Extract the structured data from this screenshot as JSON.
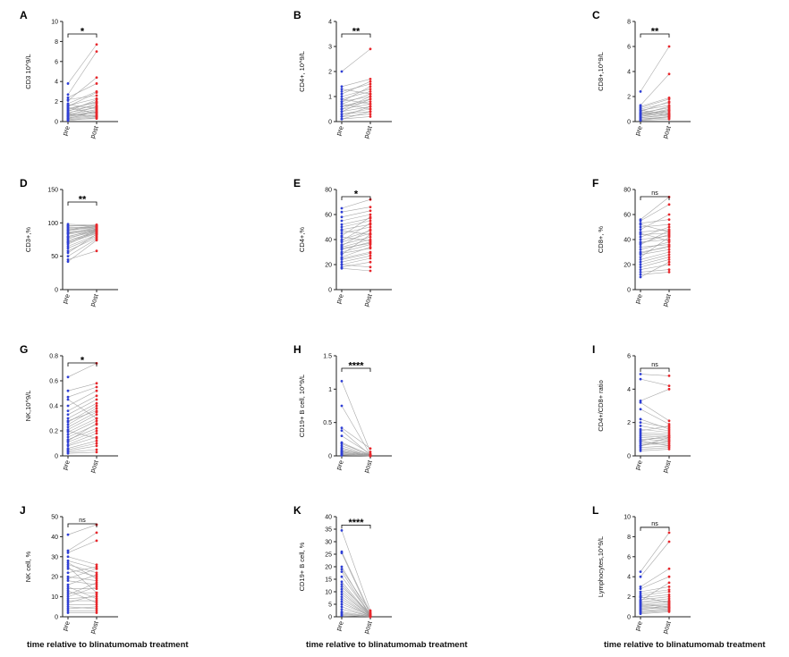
{
  "figure": {
    "x_caption": "time relative to blinatumomab treatment",
    "colors": {
      "pre": "#2f3fd6",
      "post": "#e8262b",
      "line": "#9a9a9a",
      "axis": "#222222"
    }
  },
  "chart_data": [
    {
      "type": "scatter",
      "panel": "A",
      "ylabel": "CD3 10^9/L",
      "ylim": [
        0,
        10
      ],
      "yticks": [
        0,
        2,
        4,
        6,
        8,
        10
      ],
      "categories": [
        "pre",
        "post"
      ],
      "significance": "*",
      "pairs": [
        [
          3.8,
          7.7
        ],
        [
          2.7,
          7.0
        ],
        [
          2.1,
          4.4
        ],
        [
          2.4,
          3.8
        ],
        [
          1.8,
          3.0
        ],
        [
          2.2,
          2.6
        ],
        [
          1.6,
          2.3
        ],
        [
          1.5,
          2.9
        ],
        [
          1.3,
          1.9
        ],
        [
          1.2,
          2.0
        ],
        [
          1.1,
          1.6
        ],
        [
          1.0,
          2.2
        ],
        [
          0.9,
          1.4
        ],
        [
          0.8,
          1.8
        ],
        [
          0.7,
          1.2
        ],
        [
          0.6,
          1.5
        ],
        [
          0.5,
          0.9
        ],
        [
          0.5,
          1.1
        ],
        [
          0.4,
          0.7
        ],
        [
          0.3,
          0.6
        ],
        [
          0.3,
          1.0
        ],
        [
          0.2,
          0.5
        ],
        [
          0.2,
          0.3
        ],
        [
          0.1,
          0.4
        ],
        [
          1.4,
          0.8
        ],
        [
          1.7,
          1.3
        ],
        [
          0.8,
          0.5
        ],
        [
          0.6,
          0.9
        ]
      ]
    },
    {
      "type": "scatter",
      "panel": "B",
      "ylabel": "CD4+, 10^9/L",
      "ylim": [
        0,
        4
      ],
      "yticks": [
        0,
        1,
        2,
        3,
        4
      ],
      "categories": [
        "pre",
        "post"
      ],
      "significance": "**",
      "pairs": [
        [
          2.0,
          2.9
        ],
        [
          1.4,
          1.7
        ],
        [
          1.2,
          1.5
        ],
        [
          1.1,
          1.6
        ],
        [
          1.0,
          1.3
        ],
        [
          0.9,
          1.2
        ],
        [
          0.8,
          1.4
        ],
        [
          0.8,
          1.0
        ],
        [
          0.7,
          1.1
        ],
        [
          0.6,
          0.9
        ],
        [
          0.6,
          0.8
        ],
        [
          0.5,
          1.0
        ],
        [
          0.5,
          0.7
        ],
        [
          0.4,
          0.6
        ],
        [
          0.4,
          0.9
        ],
        [
          0.3,
          0.5
        ],
        [
          0.3,
          0.4
        ],
        [
          0.2,
          0.3
        ],
        [
          0.2,
          0.6
        ],
        [
          0.1,
          0.2
        ],
        [
          0.1,
          0.4
        ],
        [
          0.9,
          0.7
        ],
        [
          1.3,
          1.1
        ],
        [
          0.7,
          0.5
        ]
      ]
    },
    {
      "type": "scatter",
      "panel": "C",
      "ylabel": "CD8+,10^9/L",
      "ylim": [
        0,
        8
      ],
      "yticks": [
        0,
        2,
        4,
        6,
        8
      ],
      "categories": [
        "pre",
        "post"
      ],
      "significance": "**",
      "pairs": [
        [
          2.4,
          6.0
        ],
        [
          1.3,
          3.8
        ],
        [
          1.1,
          1.8
        ],
        [
          1.0,
          1.5
        ],
        [
          0.9,
          1.3
        ],
        [
          0.8,
          1.6
        ],
        [
          0.7,
          1.1
        ],
        [
          0.6,
          1.2
        ],
        [
          0.6,
          0.9
        ],
        [
          0.5,
          1.0
        ],
        [
          0.5,
          0.8
        ],
        [
          0.4,
          0.7
        ],
        [
          0.4,
          0.9
        ],
        [
          0.3,
          0.6
        ],
        [
          0.3,
          0.5
        ],
        [
          0.2,
          0.4
        ],
        [
          0.2,
          0.3
        ],
        [
          0.1,
          0.2
        ],
        [
          0.1,
          0.4
        ],
        [
          1.2,
          1.9
        ],
        [
          0.9,
          0.6
        ],
        [
          0.7,
          0.5
        ]
      ]
    },
    {
      "type": "scatter",
      "panel": "D",
      "ylabel": "CD3+,%",
      "ylim": [
        0,
        150
      ],
      "yticks": [
        0,
        50,
        100,
        150
      ],
      "categories": [
        "pre",
        "post"
      ],
      "significance": "**",
      "pairs": [
        [
          98,
          96
        ],
        [
          96,
          95
        ],
        [
          95,
          97
        ],
        [
          93,
          94
        ],
        [
          92,
          93
        ],
        [
          90,
          92
        ],
        [
          88,
          95
        ],
        [
          86,
          91
        ],
        [
          85,
          90
        ],
        [
          83,
          89
        ],
        [
          80,
          88
        ],
        [
          78,
          87
        ],
        [
          76,
          90
        ],
        [
          74,
          86
        ],
        [
          72,
          85
        ],
        [
          70,
          84
        ],
        [
          68,
          88
        ],
        [
          65,
          82
        ],
        [
          62,
          80
        ],
        [
          58,
          78
        ],
        [
          55,
          83
        ],
        [
          50,
          76
        ],
        [
          45,
          58
        ],
        [
          42,
          74
        ],
        [
          89,
          97
        ],
        [
          84,
          93
        ],
        [
          79,
          91
        ],
        [
          71,
          89
        ]
      ]
    },
    {
      "type": "scatter",
      "panel": "E",
      "ylabel": "CD4+,%",
      "ylim": [
        0,
        80
      ],
      "yticks": [
        0,
        20,
        40,
        60,
        80
      ],
      "categories": [
        "pre",
        "post"
      ],
      "significance": "*",
      "pairs": [
        [
          65,
          72
        ],
        [
          62,
          66
        ],
        [
          58,
          63
        ],
        [
          55,
          60
        ],
        [
          52,
          57
        ],
        [
          50,
          55
        ],
        [
          48,
          52
        ],
        [
          45,
          50
        ],
        [
          43,
          58
        ],
        [
          40,
          47
        ],
        [
          38,
          45
        ],
        [
          36,
          42
        ],
        [
          34,
          40
        ],
        [
          32,
          38
        ],
        [
          30,
          36
        ],
        [
          28,
          44
        ],
        [
          26,
          34
        ],
        [
          25,
          30
        ],
        [
          24,
          29
        ],
        [
          22,
          27
        ],
        [
          20,
          25
        ],
        [
          18,
          22
        ],
        [
          17,
          15
        ],
        [
          20,
          18
        ],
        [
          47,
          44
        ],
        [
          42,
          39
        ],
        [
          35,
          48
        ],
        [
          29,
          33
        ],
        [
          33,
          37
        ],
        [
          39,
          53
        ]
      ]
    },
    {
      "type": "scatter",
      "panel": "F",
      "ylabel": "CD8+, %",
      "ylim": [
        0,
        80
      ],
      "yticks": [
        0,
        20,
        40,
        60,
        80
      ],
      "categories": [
        "pre",
        "post"
      ],
      "significance": "ns",
      "pairs": [
        [
          56,
          74
        ],
        [
          55,
          68
        ],
        [
          53,
          56
        ],
        [
          50,
          52
        ],
        [
          48,
          60
        ],
        [
          46,
          48
        ],
        [
          44,
          45
        ],
        [
          42,
          50
        ],
        [
          40,
          43
        ],
        [
          38,
          40
        ],
        [
          36,
          47
        ],
        [
          34,
          36
        ],
        [
          32,
          38
        ],
        [
          30,
          34
        ],
        [
          28,
          32
        ],
        [
          26,
          42
        ],
        [
          24,
          30
        ],
        [
          22,
          28
        ],
        [
          20,
          26
        ],
        [
          18,
          24
        ],
        [
          16,
          20
        ],
        [
          14,
          16
        ],
        [
          12,
          14
        ],
        [
          10,
          22
        ],
        [
          52,
          46
        ],
        [
          45,
          39
        ],
        [
          37,
          44
        ],
        [
          29,
          35
        ]
      ]
    },
    {
      "type": "scatter",
      "panel": "G",
      "ylabel": "NK,10^9/L",
      "ylim": [
        0,
        0.8
      ],
      "yticks": [
        0.0,
        0.2,
        0.4,
        0.6,
        0.8
      ],
      "categories": [
        "pre",
        "post"
      ],
      "significance": "*",
      "pairs": [
        [
          0.63,
          0.74
        ],
        [
          0.52,
          0.58
        ],
        [
          0.47,
          0.55
        ],
        [
          0.4,
          0.52
        ],
        [
          0.36,
          0.48
        ],
        [
          0.33,
          0.45
        ],
        [
          0.3,
          0.42
        ],
        [
          0.27,
          0.4
        ],
        [
          0.25,
          0.38
        ],
        [
          0.23,
          0.35
        ],
        [
          0.21,
          0.33
        ],
        [
          0.19,
          0.3
        ],
        [
          0.17,
          0.28
        ],
        [
          0.15,
          0.25
        ],
        [
          0.13,
          0.22
        ],
        [
          0.11,
          0.2
        ],
        [
          0.09,
          0.18
        ],
        [
          0.08,
          0.15
        ],
        [
          0.06,
          0.12
        ],
        [
          0.05,
          0.1
        ],
        [
          0.04,
          0.08
        ],
        [
          0.03,
          0.05
        ],
        [
          0.02,
          0.03
        ],
        [
          0.45,
          0.3
        ],
        [
          0.28,
          0.36
        ],
        [
          0.2,
          0.14
        ],
        [
          0.12,
          0.26
        ]
      ]
    },
    {
      "type": "scatter",
      "panel": "H",
      "ylabel": "CD19+ B cell, 10^9/L",
      "ylim": [
        0,
        1.5
      ],
      "yticks": [
        0.0,
        0.5,
        1.0,
        1.5
      ],
      "categories": [
        "pre",
        "post"
      ],
      "significance": "****",
      "pairs": [
        [
          1.12,
          0.06
        ],
        [
          0.75,
          0.02
        ],
        [
          0.42,
          0.11
        ],
        [
          0.38,
          0.01
        ],
        [
          0.3,
          0.03
        ],
        [
          0.2,
          0.01
        ],
        [
          0.18,
          0.02
        ],
        [
          0.15,
          0.01
        ],
        [
          0.12,
          0.0
        ],
        [
          0.1,
          0.01
        ],
        [
          0.08,
          0.0
        ],
        [
          0.07,
          0.02
        ],
        [
          0.06,
          0.0
        ],
        [
          0.05,
          0.01
        ],
        [
          0.04,
          0.0
        ],
        [
          0.03,
          0.0
        ],
        [
          0.02,
          0.0
        ],
        [
          0.02,
          0.01
        ],
        [
          0.01,
          0.0
        ],
        [
          0.01,
          0.0
        ]
      ]
    },
    {
      "type": "scatter",
      "panel": "I",
      "ylabel": "CD4+/CD8+ ratio",
      "ylim": [
        0,
        6
      ],
      "yticks": [
        0,
        2,
        4,
        6
      ],
      "categories": [
        "pre",
        "post"
      ],
      "significance": "ns",
      "pairs": [
        [
          4.9,
          4.8
        ],
        [
          4.6,
          4.2
        ],
        [
          3.3,
          4.0
        ],
        [
          3.2,
          2.1
        ],
        [
          2.8,
          1.9
        ],
        [
          2.0,
          1.7
        ],
        [
          1.8,
          1.5
        ],
        [
          1.6,
          1.4
        ],
        [
          1.4,
          1.3
        ],
        [
          1.3,
          1.2
        ],
        [
          1.2,
          1.1
        ],
        [
          1.1,
          1.0
        ],
        [
          1.0,
          0.9
        ],
        [
          0.9,
          1.2
        ],
        [
          0.8,
          0.8
        ],
        [
          0.7,
          0.7
        ],
        [
          0.6,
          0.9
        ],
        [
          0.5,
          0.6
        ],
        [
          0.4,
          0.5
        ],
        [
          0.3,
          0.4
        ],
        [
          1.5,
          1.8
        ],
        [
          0.9,
          0.6
        ],
        [
          2.2,
          1.6
        ],
        [
          0.6,
          1.1
        ]
      ]
    },
    {
      "type": "scatter",
      "panel": "J",
      "ylabel": "NK cell, %",
      "ylim": [
        0,
        50
      ],
      "yticks": [
        0,
        10,
        20,
        30,
        40,
        50
      ],
      "categories": [
        "pre",
        "post"
      ],
      "significance": "ns",
      "pairs": [
        [
          41,
          46
        ],
        [
          33,
          42
        ],
        [
          32,
          38
        ],
        [
          30,
          26
        ],
        [
          28,
          24
        ],
        [
          26,
          22
        ],
        [
          24,
          20
        ],
        [
          22,
          25
        ],
        [
          20,
          18
        ],
        [
          18,
          16
        ],
        [
          16,
          21
        ],
        [
          14,
          14
        ],
        [
          12,
          12
        ],
        [
          10,
          15
        ],
        [
          9,
          10
        ],
        [
          8,
          8
        ],
        [
          7,
          11
        ],
        [
          6,
          6
        ],
        [
          5,
          4
        ],
        [
          4,
          5
        ],
        [
          3,
          3
        ],
        [
          2,
          2
        ],
        [
          25,
          12
        ],
        [
          19,
          24
        ],
        [
          15,
          9
        ],
        [
          11,
          17
        ],
        [
          27,
          19
        ],
        [
          13,
          7
        ]
      ]
    },
    {
      "type": "scatter",
      "panel": "K",
      "ylabel": "CD19+ B cell, %",
      "ylim": [
        0,
        40
      ],
      "yticks": [
        0,
        5,
        10,
        15,
        20,
        25,
        30,
        35,
        40
      ],
      "categories": [
        "pre",
        "post"
      ],
      "significance": "****",
      "pairs": [
        [
          34.5,
          2.5
        ],
        [
          26,
          1.5
        ],
        [
          25.5,
          0.8
        ],
        [
          20,
          0.5
        ],
        [
          19,
          2.0
        ],
        [
          18,
          0.3
        ],
        [
          16,
          1.0
        ],
        [
          14,
          0.4
        ],
        [
          13,
          0.2
        ],
        [
          11,
          0.6
        ],
        [
          10,
          0.3
        ],
        [
          8,
          0.1
        ],
        [
          7,
          0.2
        ],
        [
          6,
          0.1
        ],
        [
          5,
          0.5
        ],
        [
          4,
          0.1
        ],
        [
          3,
          0.2
        ],
        [
          2,
          0.1
        ],
        [
          1.5,
          0.0
        ],
        [
          1.0,
          0.1
        ],
        [
          0.5,
          0.0
        ],
        [
          12,
          1.2
        ],
        [
          9,
          0.4
        ]
      ]
    },
    {
      "type": "scatter",
      "panel": "L",
      "ylabel": "Lymphocytes,10^9/L",
      "ylim": [
        0,
        10
      ],
      "yticks": [
        0,
        2,
        4,
        6,
        8,
        10
      ],
      "categories": [
        "pre",
        "post"
      ],
      "significance": "ns",
      "pairs": [
        [
          4.5,
          8.4
        ],
        [
          4.0,
          7.5
        ],
        [
          3.0,
          4.8
        ],
        [
          2.8,
          4.0
        ],
        [
          2.5,
          3.0
        ],
        [
          2.3,
          2.7
        ],
        [
          2.1,
          2.5
        ],
        [
          1.9,
          2.2
        ],
        [
          1.7,
          2.0
        ],
        [
          1.5,
          1.8
        ],
        [
          1.4,
          1.6
        ],
        [
          1.2,
          1.5
        ],
        [
          1.1,
          1.3
        ],
        [
          1.0,
          1.2
        ],
        [
          0.9,
          1.0
        ],
        [
          0.8,
          0.9
        ],
        [
          0.7,
          1.1
        ],
        [
          0.6,
          0.8
        ],
        [
          0.5,
          0.7
        ],
        [
          0.4,
          0.6
        ],
        [
          0.3,
          0.5
        ],
        [
          2.0,
          1.4
        ],
        [
          1.6,
          3.4
        ],
        [
          1.3,
          0.9
        ]
      ]
    }
  ]
}
